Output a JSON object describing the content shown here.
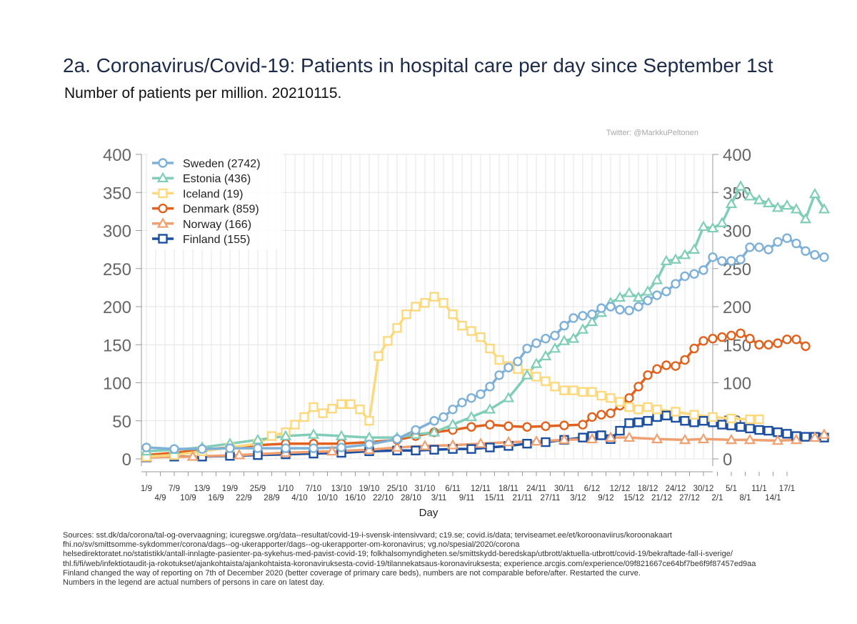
{
  "title": "2a. Coronavirus/Covid-19: Patients in hospital care per day since September 1st",
  "subtitle": "Number of patients per million. 20210115.",
  "credit": "Twitter: @MarkkuPeltonen",
  "sources": [
    "Sources: sst.dk/da/corona/tal-og-overvaagning; icuregswe.org/data--resultat/covid-19-i-svensk-intensivvard; c19.se; covid.is/data;  terviseamet.ee/et/koroonaviirus/koroonakaart",
    "fhi.no/sv/smittsomme-sykdommer/corona/dags--og-ukerapporter/dags--og-ukerapporter-om-koronavirus; vg.no/spesial/2020/corona",
    "helsedirektoratet.no/statistikk/antall-innlagte-pasienter-pa-sykehus-med-pavist-covid-19; folkhalsomyndigheten.se/smittskydd-beredskap/utbrott/aktuella-utbrott/covid-19/bekraftade-fall-i-sverige/",
    "thl.fi/fi/web/infektiotaudit-ja-rokotukset/ajankohtaista/ajankohtaista-koronaviruksesta-covid-19/tilannekatsaus-koronaviruksesta; experience.arcgis.com/experience/09f821667ce64bf7be6f9f87457ed9aa",
    "Finland changed the way of reporting on 7th of December 2020 (better coverage of primary care beds), numbers are not comparable before/after. Restarted the curve.",
    "Numbers in the legend are actual numbers of persons in care on latest day."
  ],
  "chart_data": {
    "type": "line",
    "xlabel": "Day",
    "ylabel": "",
    "ylim": [
      0,
      400
    ],
    "y_ticks": [
      0,
      50,
      100,
      150,
      200,
      250,
      300,
      350,
      400
    ],
    "x_ticks_top": [
      "1/9",
      "7/9",
      "13/9",
      "19/9",
      "25/9",
      "1/10",
      "7/10",
      "13/10",
      "19/10",
      "25/10",
      "31/10",
      "6/11",
      "12/11",
      "18/11",
      "24/11",
      "30/11",
      "6/12",
      "12/12",
      "18/12",
      "24/12",
      "30/12",
      "5/1",
      "11/1",
      "17/1"
    ],
    "x_ticks_bottom": [
      "4/9",
      "10/9",
      "16/9",
      "22/9",
      "28/9",
      "4/10",
      "10/10",
      "16/10",
      "22/10",
      "28/10",
      "3/11",
      "9/11",
      "15/11",
      "21/11",
      "27/11",
      "3/12",
      "9/12",
      "15/12",
      "21/12",
      "27/12",
      "2/1",
      "8/1",
      "14/1"
    ],
    "x_range_days": [
      0,
      138
    ],
    "grid": true,
    "legend_placement": "top-left",
    "series": [
      {
        "name": "Sweden (2742)",
        "color": "#7fb1d8",
        "marker": "circle",
        "points": [
          [
            0,
            15
          ],
          [
            6,
            13
          ],
          [
            12,
            13
          ],
          [
            18,
            14
          ],
          [
            24,
            14
          ],
          [
            30,
            14
          ],
          [
            36,
            14
          ],
          [
            42,
            15
          ],
          [
            48,
            19
          ],
          [
            54,
            26
          ],
          [
            58,
            38
          ],
          [
            62,
            50
          ],
          [
            64,
            55
          ],
          [
            66,
            65
          ],
          [
            68,
            74
          ],
          [
            70,
            80
          ],
          [
            72,
            85
          ],
          [
            74,
            95
          ],
          [
            76,
            110
          ],
          [
            78,
            120
          ],
          [
            80,
            128
          ],
          [
            82,
            145
          ],
          [
            84,
            152
          ],
          [
            86,
            158
          ],
          [
            88,
            162
          ],
          [
            90,
            175
          ],
          [
            92,
            185
          ],
          [
            94,
            188
          ],
          [
            96,
            190
          ],
          [
            98,
            198
          ],
          [
            100,
            200
          ],
          [
            102,
            196
          ],
          [
            104,
            195
          ],
          [
            106,
            200
          ],
          [
            108,
            208
          ],
          [
            110,
            215
          ],
          [
            112,
            220
          ],
          [
            114,
            230
          ],
          [
            116,
            240
          ],
          [
            118,
            243
          ],
          [
            120,
            248
          ],
          [
            122,
            265
          ],
          [
            124,
            260
          ],
          [
            126,
            260
          ],
          [
            128,
            262
          ],
          [
            130,
            278
          ],
          [
            132,
            278
          ],
          [
            134,
            275
          ],
          [
            136,
            285
          ],
          [
            138,
            290
          ],
          [
            140,
            283
          ],
          [
            142,
            273
          ],
          [
            144,
            268
          ],
          [
            146,
            265
          ]
        ]
      },
      {
        "name": "Estonia (436)",
        "color": "#80cdb8",
        "marker": "triangle",
        "points": [
          [
            0,
            10
          ],
          [
            6,
            12
          ],
          [
            12,
            15
          ],
          [
            18,
            20
          ],
          [
            24,
            25
          ],
          [
            30,
            30
          ],
          [
            36,
            32
          ],
          [
            42,
            30
          ],
          [
            48,
            28
          ],
          [
            54,
            28
          ],
          [
            58,
            32
          ],
          [
            62,
            35
          ],
          [
            66,
            45
          ],
          [
            70,
            55
          ],
          [
            74,
            65
          ],
          [
            78,
            80
          ],
          [
            82,
            110
          ],
          [
            84,
            125
          ],
          [
            86,
            135
          ],
          [
            88,
            145
          ],
          [
            90,
            155
          ],
          [
            92,
            158
          ],
          [
            94,
            170
          ],
          [
            96,
            180
          ],
          [
            98,
            192
          ],
          [
            100,
            205
          ],
          [
            102,
            212
          ],
          [
            104,
            218
          ],
          [
            106,
            212
          ],
          [
            108,
            220
          ],
          [
            110,
            235
          ],
          [
            112,
            260
          ],
          [
            114,
            262
          ],
          [
            116,
            268
          ],
          [
            118,
            275
          ],
          [
            120,
            305
          ],
          [
            122,
            303
          ],
          [
            124,
            310
          ],
          [
            126,
            335
          ],
          [
            128,
            358
          ],
          [
            130,
            345
          ],
          [
            132,
            340
          ],
          [
            134,
            336
          ],
          [
            136,
            330
          ],
          [
            138,
            333
          ],
          [
            140,
            328
          ],
          [
            142,
            315
          ],
          [
            144,
            348
          ],
          [
            146,
            328
          ]
        ]
      },
      {
        "name": "Iceland (19)",
        "color": "#fdd97e",
        "marker": "square",
        "points": [
          [
            0,
            3
          ],
          [
            6,
            5
          ],
          [
            12,
            10
          ],
          [
            18,
            15
          ],
          [
            24,
            20
          ],
          [
            27,
            30
          ],
          [
            30,
            35
          ],
          [
            32,
            45
          ],
          [
            34,
            55
          ],
          [
            36,
            68
          ],
          [
            38,
            60
          ],
          [
            40,
            66
          ],
          [
            42,
            72
          ],
          [
            44,
            72
          ],
          [
            46,
            65
          ],
          [
            48,
            50
          ],
          [
            50,
            135
          ],
          [
            52,
            155
          ],
          [
            54,
            172
          ],
          [
            56,
            190
          ],
          [
            58,
            200
          ],
          [
            60,
            205
          ],
          [
            62,
            213
          ],
          [
            64,
            205
          ],
          [
            66,
            190
          ],
          [
            68,
            175
          ],
          [
            70,
            168
          ],
          [
            72,
            160
          ],
          [
            74,
            145
          ],
          [
            76,
            130
          ],
          [
            78,
            122
          ],
          [
            80,
            118
          ],
          [
            82,
            112
          ],
          [
            84,
            108
          ],
          [
            86,
            102
          ],
          [
            88,
            95
          ],
          [
            90,
            90
          ],
          [
            92,
            90
          ],
          [
            94,
            88
          ],
          [
            96,
            88
          ],
          [
            98,
            83
          ],
          [
            100,
            80
          ],
          [
            102,
            75
          ],
          [
            104,
            68
          ],
          [
            106,
            65
          ],
          [
            108,
            68
          ],
          [
            110,
            65
          ],
          [
            114,
            62
          ],
          [
            118,
            58
          ],
          [
            122,
            55
          ],
          [
            126,
            53
          ],
          [
            130,
            52
          ],
          [
            132,
            52
          ]
        ]
      },
      {
        "name": "Denmark (859)",
        "color": "#e0621e",
        "marker": "circle",
        "points": [
          [
            0,
            5
          ],
          [
            6,
            8
          ],
          [
            12,
            12
          ],
          [
            18,
            15
          ],
          [
            24,
            18
          ],
          [
            30,
            20
          ],
          [
            36,
            20
          ],
          [
            42,
            20
          ],
          [
            48,
            22
          ],
          [
            54,
            25
          ],
          [
            58,
            30
          ],
          [
            62,
            35
          ],
          [
            66,
            38
          ],
          [
            70,
            42
          ],
          [
            74,
            45
          ],
          [
            78,
            43
          ],
          [
            82,
            42
          ],
          [
            86,
            43
          ],
          [
            90,
            44
          ],
          [
            94,
            45
          ],
          [
            96,
            55
          ],
          [
            98,
            58
          ],
          [
            100,
            60
          ],
          [
            102,
            70
          ],
          [
            104,
            80
          ],
          [
            106,
            95
          ],
          [
            108,
            110
          ],
          [
            110,
            118
          ],
          [
            112,
            123
          ],
          [
            114,
            122
          ],
          [
            116,
            130
          ],
          [
            118,
            145
          ],
          [
            120,
            155
          ],
          [
            122,
            158
          ],
          [
            124,
            160
          ],
          [
            126,
            162
          ],
          [
            128,
            165
          ],
          [
            130,
            158
          ],
          [
            132,
            150
          ],
          [
            134,
            150
          ],
          [
            136,
            152
          ],
          [
            138,
            157
          ],
          [
            140,
            157
          ],
          [
            142,
            148
          ]
        ]
      },
      {
        "name": "Norway  (166)",
        "color": "#f0a070",
        "marker": "triangle",
        "points": [
          [
            0,
            2
          ],
          [
            10,
            3
          ],
          [
            20,
            5
          ],
          [
            30,
            8
          ],
          [
            40,
            10
          ],
          [
            48,
            12
          ],
          [
            54,
            15
          ],
          [
            60,
            17
          ],
          [
            66,
            18
          ],
          [
            72,
            20
          ],
          [
            78,
            22
          ],
          [
            84,
            23
          ],
          [
            90,
            25
          ],
          [
            96,
            26
          ],
          [
            100,
            28
          ],
          [
            104,
            28
          ],
          [
            110,
            26
          ],
          [
            116,
            25
          ],
          [
            120,
            26
          ],
          [
            126,
            25
          ],
          [
            130,
            25
          ],
          [
            136,
            24
          ],
          [
            140,
            25
          ],
          [
            144,
            28
          ],
          [
            146,
            32
          ]
        ]
      },
      {
        "name": "Finland (155)",
        "color": "#1d4fa0",
        "marker": "square",
        "points": [
          [
            0,
            2
          ],
          [
            6,
            3
          ],
          [
            12,
            3
          ],
          [
            18,
            4
          ],
          [
            24,
            5
          ],
          [
            30,
            6
          ],
          [
            36,
            7
          ],
          [
            42,
            8
          ],
          [
            48,
            10
          ],
          [
            54,
            11
          ],
          [
            58,
            11
          ],
          [
            62,
            12
          ],
          [
            66,
            13
          ],
          [
            70,
            13
          ],
          [
            74,
            15
          ],
          [
            78,
            17
          ],
          [
            82,
            20
          ],
          [
            86,
            22
          ],
          [
            90,
            25
          ],
          [
            94,
            28
          ],
          [
            96,
            30
          ],
          [
            98,
            31
          ],
          [
            100,
            26
          ],
          [
            102,
            37
          ],
          [
            104,
            47
          ],
          [
            106,
            48
          ],
          [
            108,
            50
          ],
          [
            110,
            55
          ],
          [
            112,
            57
          ],
          [
            114,
            54
          ],
          [
            116,
            50
          ],
          [
            118,
            48
          ],
          [
            120,
            50
          ],
          [
            122,
            48
          ],
          [
            124,
            45
          ],
          [
            126,
            44
          ],
          [
            128,
            42
          ],
          [
            130,
            40
          ],
          [
            132,
            38
          ],
          [
            134,
            37
          ],
          [
            136,
            35
          ],
          [
            138,
            33
          ],
          [
            140,
            30
          ],
          [
            142,
            29
          ],
          [
            144,
            29
          ],
          [
            146,
            28
          ]
        ]
      }
    ]
  }
}
